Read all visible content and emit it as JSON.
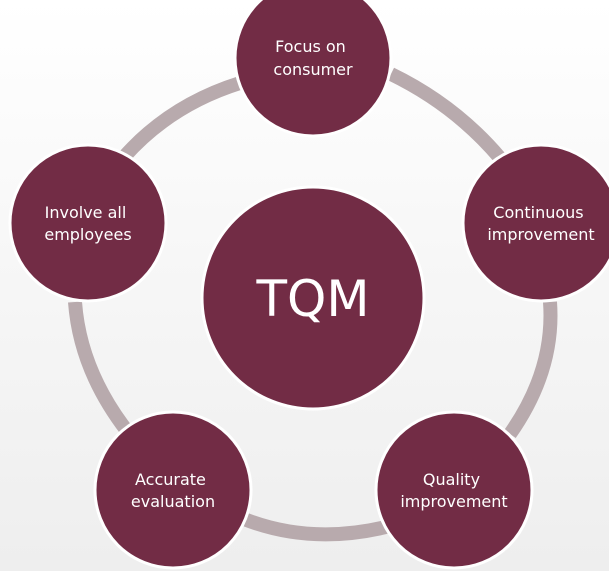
{
  "diagram": {
    "center": {
      "label": "TQM"
    },
    "nodes": [
      {
        "id": "focus-on-consumer",
        "line1": "Focus on",
        "line2": "consumer"
      },
      {
        "id": "continuous-improvement",
        "line1": "Continuous",
        "line2": "improvement"
      },
      {
        "id": "quality-improvement",
        "line1": "Quality",
        "line2": "improvement"
      },
      {
        "id": "accurate-evaluation",
        "line1": "Accurate",
        "line2": "evaluation"
      },
      {
        "id": "involve-all-employees",
        "line1": "Involve all",
        "line2": "employees"
      }
    ],
    "colors": {
      "node_fill": "#722c45",
      "connector": "#b8aaad",
      "text": "#ffffff"
    }
  }
}
